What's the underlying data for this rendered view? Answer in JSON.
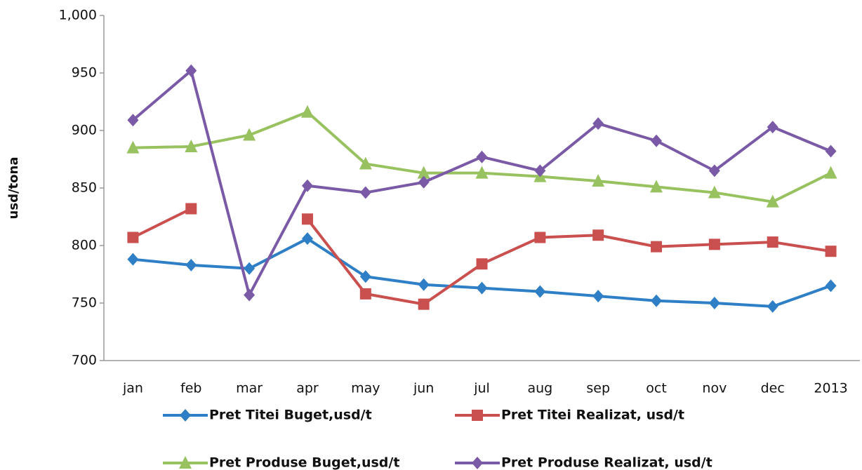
{
  "chart_data": {
    "type": "line",
    "y_label": "usd/tona",
    "categories": [
      "jan",
      "feb",
      "mar",
      "apr",
      "may",
      "jun",
      "jul",
      "aug",
      "sep",
      "oct",
      "nov",
      "dec",
      "2013"
    ],
    "series": [
      {
        "name": "Pret Titei Buget,usd/t",
        "color": "#2e7fc6",
        "marker": "diamond",
        "values": [
          788,
          783,
          780,
          806,
          773,
          766,
          763,
          760,
          756,
          752,
          750,
          747,
          765
        ]
      },
      {
        "name": "Pret Titei Realizat, usd/t",
        "color": "#c9504f",
        "marker": "square",
        "values": [
          807,
          832,
          null,
          823,
          758,
          749,
          784,
          807,
          809,
          799,
          801,
          803,
          795
        ]
      },
      {
        "name": "Pret Produse Buget,usd/t",
        "color": "#98c25f",
        "marker": "triangle",
        "values": [
          885,
          886,
          896,
          916,
          871,
          863,
          863,
          860,
          856,
          851,
          846,
          838,
          863
        ]
      },
      {
        "name": "Pret Produse Realizat, usd/t",
        "color": "#7a5aa6",
        "marker": "diamond",
        "values": [
          909,
          952,
          757,
          852,
          846,
          855,
          877,
          865,
          906,
          891,
          865,
          903,
          882
        ]
      }
    ],
    "ylim": [
      700,
      1000
    ],
    "yticks": [
      700,
      750,
      800,
      850,
      900,
      950,
      {
        "value": 1000,
        "label": "1,000"
      }
    ],
    "grid": false,
    "legend": "bottom"
  }
}
